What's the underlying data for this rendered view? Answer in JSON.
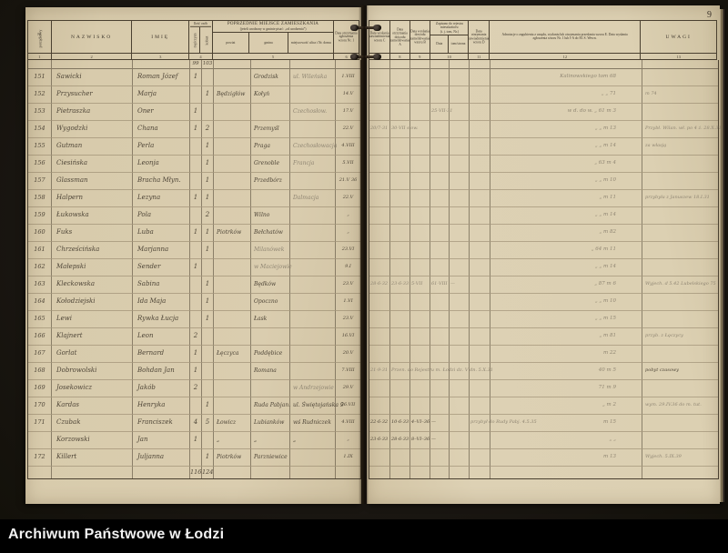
{
  "watermark": "Archiwum Państwowe w Łodzi",
  "page_number": "9",
  "header": {
    "col1_top": "Nr.",
    "col1_rot": "porządkowy",
    "col2": "NAZWISKO",
    "col3": "IMIĘ",
    "col4_title": "Ilość osób",
    "col4a": "mężczyzn",
    "col4b": "kobiet",
    "col5_title": "POPRZEDNIE MIEJSCE ZAMIESZKANIA",
    "col5_sub": "(jeżeli urodzony w gminie pisać: „od urodzenia”)",
    "col5a": "powiat",
    "col5b": "gmina",
    "col5c": "miejscowość ulica i Nr. domu",
    "col6": "Data otrzymania zgłoszenia wzoru Nr. 1",
    "col7": "Data wysłania zawiadomienia wzoru C",
    "col8": "Data otrzymania dowodu zameldowania A",
    "col9": "Data wysłania dowodu zameldowania wzoru B",
    "col10_title": "Zapisano do rejestru mieszkańców",
    "col10_sub": "(t. j. tom, Nr.)",
    "col10a": "Data",
    "col10b": "tom/strona",
    "col11": "Data otrzymania zawiadomienia wzoru D",
    "col12": "Adnotacje o zagubieniu z urzędu, wydaniu lub otrzymaniu przesłania wzoru E. Data wysłania zgłoszenia wzoru Nr. 1 lub I-A do M. S. Wewn.",
    "col13": "UWAGI",
    "left_numbers": [
      "1",
      "2",
      "3",
      "4",
      "5",
      "6"
    ],
    "right_numbers": [
      "7",
      "8",
      "9",
      "10",
      "11",
      "12",
      "13"
    ]
  },
  "rows": [
    {
      "cls": "subtotal",
      "m": "99",
      "f": "103"
    },
    {
      "no": "151",
      "naz": "Sawicki",
      "imie": "Roman Józef",
      "m": "1",
      "gmina": "Grodzisk",
      "miejsc": "~ul. Wileńska",
      "data": "1.VIII",
      "adnot": "~Kalinowskiego tom 68"
    },
    {
      "no": "152",
      "naz": "Przysucher",
      "imie": "Marja",
      "f": "1",
      "powiat": "Będzigłów",
      "gmina": "Kołyń",
      "data": "14.V",
      "adnot": "~„   „   71",
      "uwagi": "~m 74"
    },
    {
      "no": "153",
      "naz": "Pietraszka",
      "imie": "Oner",
      "m": "1",
      "miejsc": "~Czechosłow.",
      "data": "17.V",
      "c10a": "~25·VII·31",
      "adnot": "~w d. do w.   „ 61 m 3"
    },
    {
      "no": "154",
      "naz": "Wygodzki",
      "imie": "Chana",
      "m": "1",
      "f": "2",
      "gmina": "Przemyśl",
      "data": "22.V",
      "c7": "~20/7·31",
      "c8": "~30·VII słow.",
      "adnot": "~„   „   m 13",
      "uwagi": "~Przybł. Wilan. wł. po 4 ż. 28.X.31"
    },
    {
      "no": "155",
      "naz": "Gutman",
      "imie": "Perla",
      "f": "1",
      "gmina": "Praga",
      "miejsc": "~Czechosłowacja",
      "data": "4.VIII",
      "adnot": "~„   „   m 14",
      "uwagi": "~za własją"
    },
    {
      "no": "156",
      "naz": "Ciesińska",
      "imie": "Leonja",
      "f": "1",
      "gmina": "Grenoble",
      "miejsc": "~Francja",
      "data": "5.VII",
      "adnot": "~„   63   m 4"
    },
    {
      "no": "157",
      "naz": "Glassman",
      "imie": "Bracha Młyn.",
      "f": "1",
      "gmina": "Przedbórz",
      "data": "21.V 36",
      "adnot": "~„   „   m 10"
    },
    {
      "no": "158",
      "naz": "Halpern",
      "imie": "Lezyna",
      "m": "1",
      "f": "1",
      "miejsc": "~Dalmacja",
      "data": "22.V",
      "adnot": "~„   m 11",
      "uwagi": "~przybyła z Januszew 18.I.31"
    },
    {
      "no": "159",
      "naz": "Łukowska",
      "imie": "Pola",
      "f": "2",
      "gmina": "Wilno",
      "data": "„",
      "adnot": "~„   „   m 14"
    },
    {
      "no": "160",
      "naz": "Fuks",
      "imie": "Luba",
      "m": "1",
      "f": "1",
      "powiat": "Piotrków",
      "gmina": "Bełchatów",
      "data": "„",
      "adnot": "~„   m 82"
    },
    {
      "no": "161",
      "naz": "Chrześcińska",
      "imie": "Marjanna",
      "f": "1",
      "gmina": "~Milanówek",
      "data": "23.VI",
      "adnot": "~„   64   m 11"
    },
    {
      "no": "162",
      "naz": "Małepski",
      "imie": "Sender",
      "m": "1",
      "gmina": "~w Maciejowie",
      "data": "9.I",
      "adnot": "~„   „   m 14"
    },
    {
      "no": "163",
      "naz": "Kleckowska",
      "imie": "Sabina",
      "f": "1",
      "gmina": "Będków",
      "data": "23.V",
      "c7": "~28·6·32",
      "c8": "~23·6·33",
      "c9": "~5·VII",
      "c10a": "~61·VIII",
      "c10b": "~—",
      "adnot": "~„   87   m 6",
      "uwagi": "~Wyjech. d 5.42 Lubelskiego 75"
    },
    {
      "no": "164",
      "naz": "Kołodziejski",
      "imie": "Ida Maja",
      "f": "1",
      "gmina": "Opoczno",
      "data": "1.VI",
      "adnot": "~„   „   m 10"
    },
    {
      "no": "165",
      "naz": "Lewi",
      "imie": "Rywka Łucja",
      "f": "1",
      "gmina": "Łask",
      "data": "23.V",
      "adnot": "~„   „   m 15"
    },
    {
      "no": "166",
      "naz": "Klajnert",
      "imie": "Leon",
      "m": "2",
      "data": "16.VI",
      "adnot": "~„   m 81",
      "uwagi": "~przyb. z Łęczycy"
    },
    {
      "no": "167",
      "naz": "Gorlat",
      "imie": "Bernard",
      "m": "1",
      "powiat": "Łęczyca",
      "gmina": "Poddębice",
      "data": "20.V",
      "adnot": "~m 22"
    },
    {
      "no": "168",
      "naz": "Dobrowolski",
      "imie": "Bohdan Jan",
      "m": "1",
      "gmina": "Romana",
      "data": "7.VIII",
      "c7": "~21·9·31",
      "c8": "~Przen. do Rejestru m. Łodzi dz. V dn. 5.X.31",
      "adnot": "~40   m 5",
      "uwagi": "pobyt czasowy"
    },
    {
      "no": "169",
      "naz": "Josekowicz",
      "imie": "Jakób",
      "m": "2",
      "miejsc": "~w Andrzejowie",
      "data": "29.V",
      "adnot": "~71   m 9"
    },
    {
      "no": "170",
      "naz": "Kardas",
      "imie": "Henryka",
      "f": "1",
      "gmina": "Ruda Pabjan.",
      "miejsc": "ul. Świętojańska 9",
      "data": "26.VII",
      "adnot": "~„   m 2",
      "uwagi": "~wym. 29.IV.36 do m. tut."
    },
    {
      "no": "171",
      "naz": "Czubak",
      "imie": "Franciszek",
      "m": "4",
      "f": "5",
      "powiat": "Łowicz",
      "gmina": "Lubianków",
      "miejsc": "wś Rudniczek",
      "data": "4.VIII",
      "c7": "22·6·32",
      "c8": "10·6·33",
      "c9": "4–VI–36",
      "c10a": "—",
      "c11": "~przybył do Rudy Pabj. 4.5.35",
      "adnot": "~m 15"
    },
    {
      "naz": "Korzowski",
      "imie": "Jan",
      "m": "1",
      "powiat": "„",
      "gmina": "„",
      "miejsc": "„",
      "data": "„",
      "c7": "23·6·33",
      "c8": "28·6·33",
      "c9": "8–VI–36",
      "c10a": "—",
      "adnot": "~„   „"
    },
    {
      "no": "172",
      "naz": "Killert",
      "imie": "Juljanna",
      "f": "1",
      "powiat": "Piotrków",
      "gmina": "Parzniewice",
      "data": "1.IX",
      "adnot": "~m 13",
      "uwagi": "~Wyjech. 5.IX.39"
    },
    {
      "cls": "totals",
      "m": "116",
      "f": "124"
    }
  ]
}
